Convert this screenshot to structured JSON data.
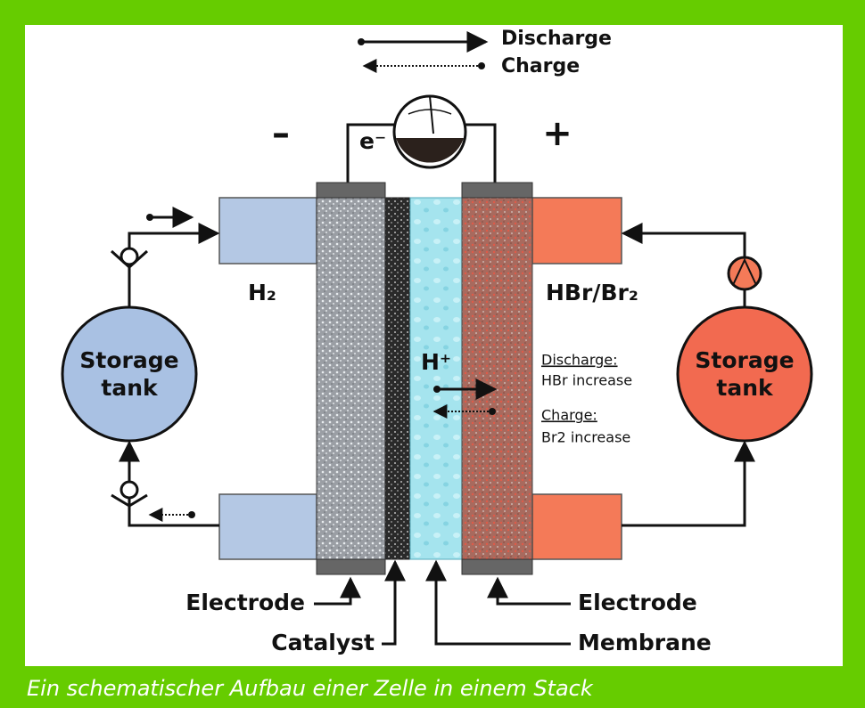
{
  "legend": {
    "discharge": "Discharge",
    "charge": "Charge"
  },
  "signs": {
    "negative": "–",
    "positive": "+"
  },
  "electron": "e⁻",
  "labels": {
    "left_fluid": "H₂",
    "right_fluid": "HBr/Br₂",
    "proton": "H⁺"
  },
  "left_tank": [
    "Storage",
    "tank"
  ],
  "right_tank": [
    "Storage",
    "tank"
  ],
  "reaction_notes": {
    "discharge_title": "Discharge:",
    "discharge_text": "HBr increase",
    "charge_title": "Charge:",
    "charge_text": "Br2 increase"
  },
  "components": {
    "left_electrode": "Electrode",
    "catalyst": "Catalyst",
    "membrane": "Membrane",
    "right_electrode": "Electrode"
  },
  "caption": "Ein schematischer Aufbau einer Zelle in einem Stack"
}
